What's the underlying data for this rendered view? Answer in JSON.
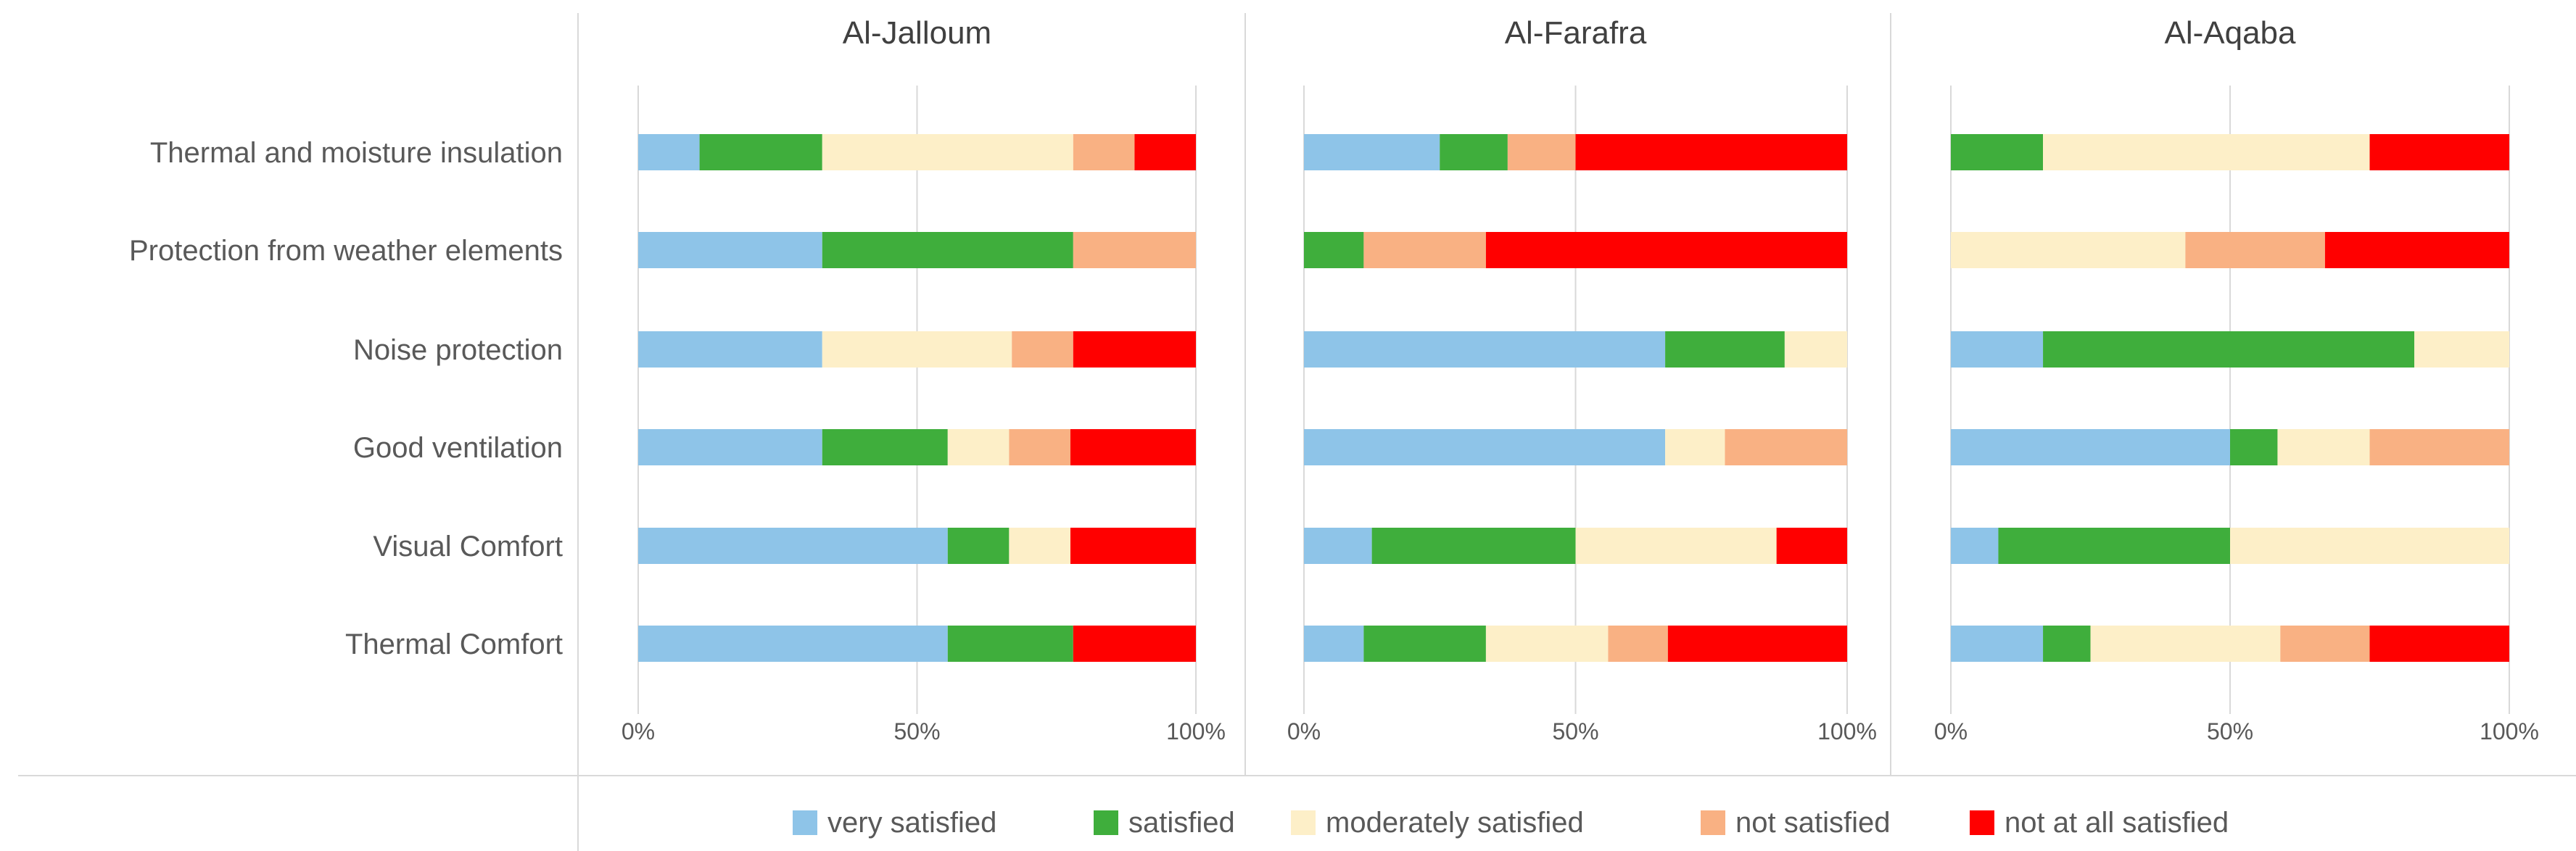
{
  "chart_data": {
    "type": "stacked_bar_100",
    "categories": [
      "Thermal and moisture insulation",
      "Protection from weather elements",
      "Noise protection",
      "Good ventilation",
      "Visual Comfort",
      "Thermal Comfort"
    ],
    "legend": {
      "position": "bottom",
      "entries": [
        {
          "name": "very satisfied",
          "color": "#8ec4e8"
        },
        {
          "name": "satisfied",
          "color": "#3fae3c"
        },
        {
          "name": "moderately satisfied",
          "color": "#fdefc8"
        },
        {
          "name": "not satisfied",
          "color": "#f9b183"
        },
        {
          "name": "not at all satisfied",
          "color": "#ff0000"
        }
      ]
    },
    "x_ticks": [
      "0%",
      "50%",
      "100%"
    ],
    "xlim": [
      0,
      100
    ],
    "grid": true,
    "panels": [
      {
        "title": "Al-Jalloum",
        "values": [
          [
            11,
            22,
            45,
            11,
            11
          ],
          [
            33,
            45,
            0,
            22,
            0
          ],
          [
            33,
            0,
            34,
            11,
            22
          ],
          [
            33,
            22.5,
            11,
            11,
            22.5
          ],
          [
            55.5,
            11,
            11,
            0,
            22.5
          ],
          [
            55.5,
            22.5,
            0,
            0,
            22
          ]
        ]
      },
      {
        "title": "Al-Farafra",
        "values": [
          [
            25,
            12.5,
            0,
            12.5,
            50
          ],
          [
            0,
            11,
            0,
            22.5,
            66.5
          ],
          [
            66.5,
            22,
            11.5,
            0,
            0
          ],
          [
            66.5,
            0,
            11,
            22.5,
            0
          ],
          [
            12.5,
            37.5,
            37,
            0,
            13
          ],
          [
            11,
            22.5,
            22.5,
            11,
            33
          ]
        ]
      },
      {
        "title": "Al-Aqaba",
        "values": [
          [
            0,
            16.5,
            58.5,
            0,
            25
          ],
          [
            0,
            0,
            42,
            25,
            33
          ],
          [
            16.5,
            66.5,
            17,
            0,
            0
          ],
          [
            50,
            8.5,
            16.5,
            25,
            0
          ],
          [
            8.5,
            41.5,
            50,
            0,
            0
          ],
          [
            16.5,
            8.5,
            34,
            16,
            25
          ]
        ]
      }
    ]
  }
}
